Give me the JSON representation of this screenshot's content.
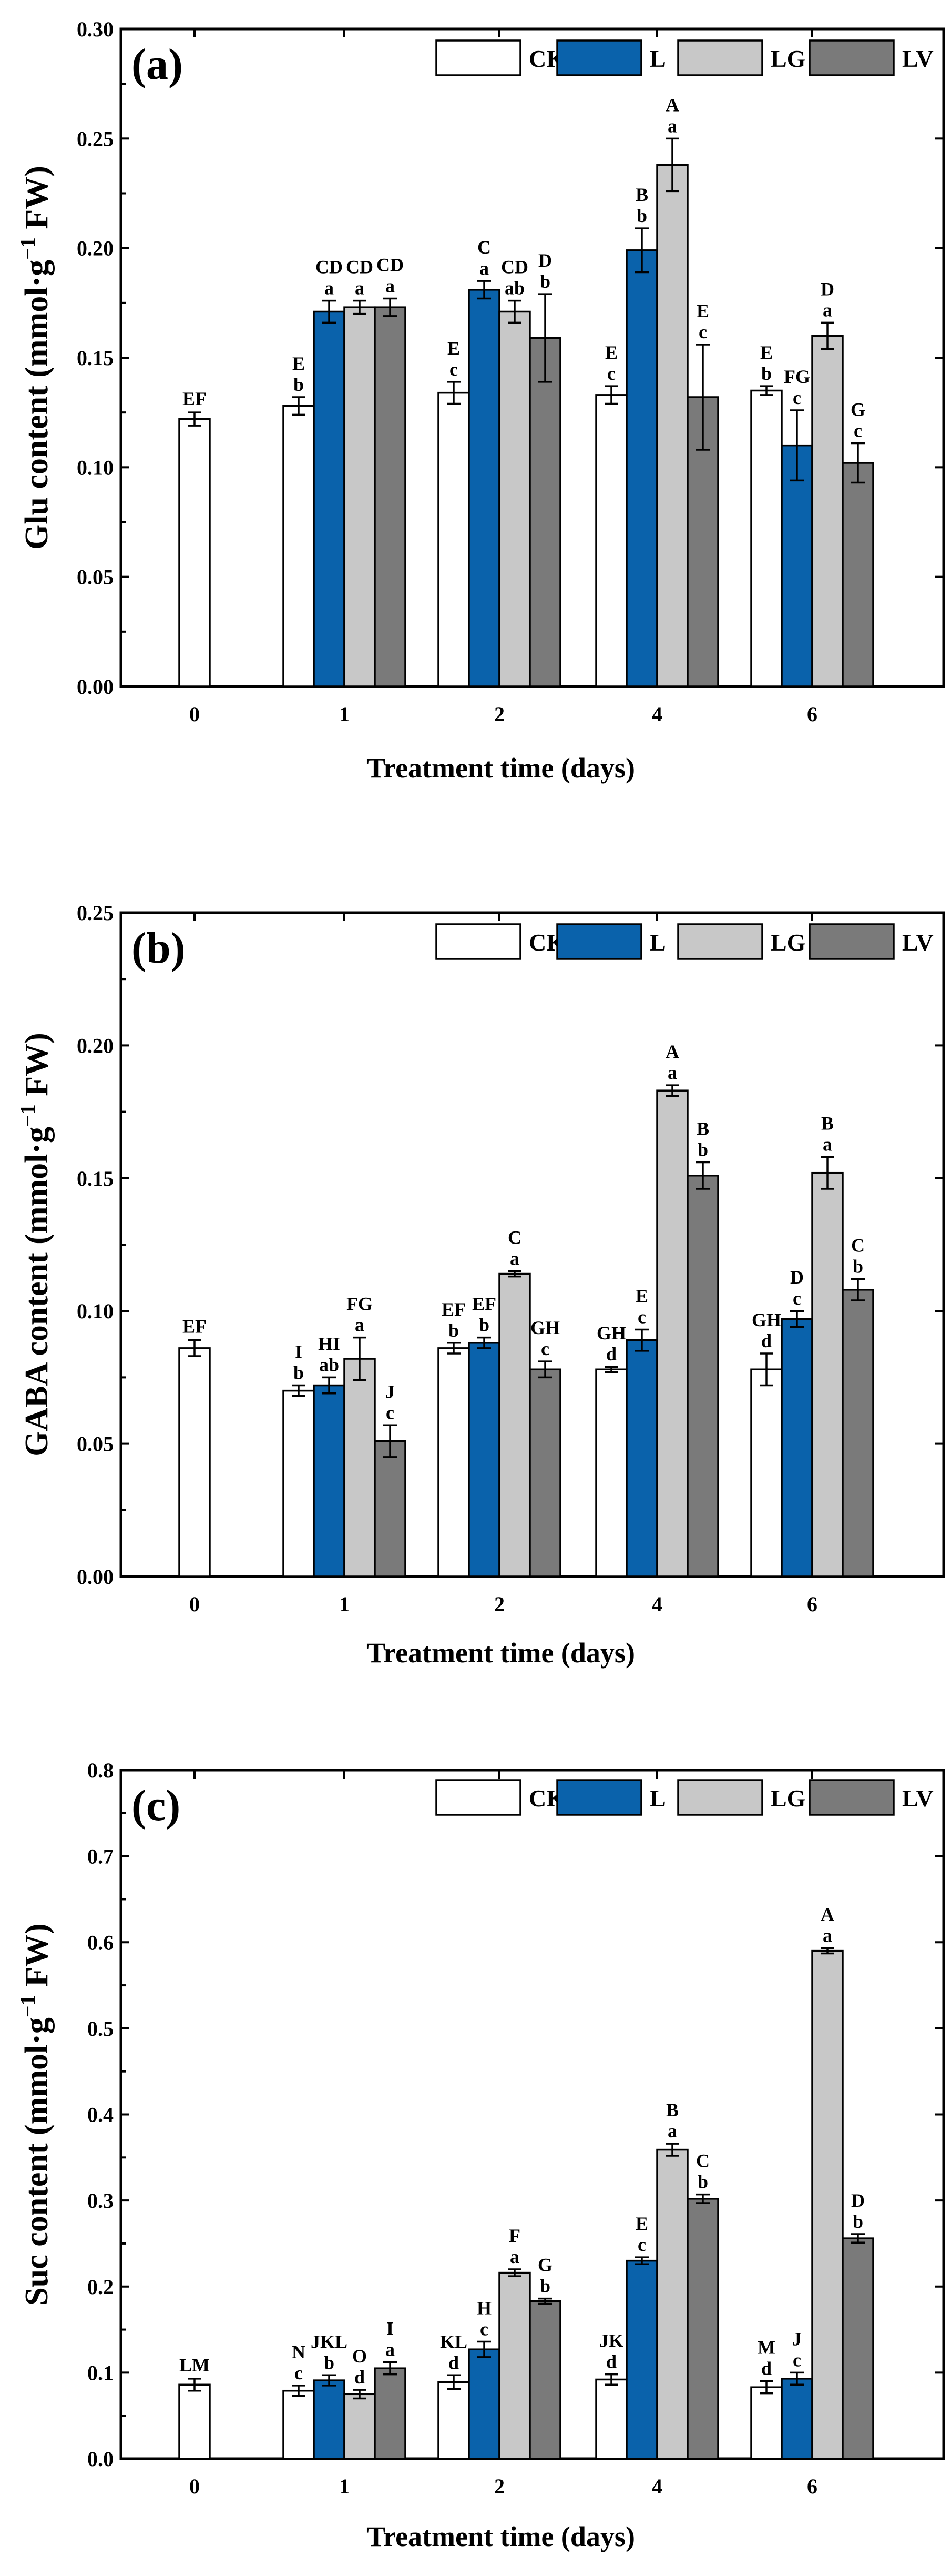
{
  "colors": {
    "CK": "#ffffff",
    "L": "#0a62ab",
    "LG": "#c8c8c8",
    "LV": "#7a7a7a"
  },
  "chart_data": [
    {
      "type": "bar",
      "panel": "(a)",
      "xlabel": "Treatment time (days)",
      "ylabel": {
        "prefix": "Glu content (mmol·g",
        "sup": "−1",
        "suffix": " FW)"
      },
      "ylim": [
        0,
        0.3
      ],
      "yticks": [
        "0.00",
        "0.05",
        "0.10",
        "0.15",
        "0.20",
        "0.25",
        "0.30"
      ],
      "categories": [
        "0",
        "1",
        "2",
        "4",
        "6"
      ],
      "legend": [
        "CK",
        "L",
        "LG",
        "LV"
      ],
      "series": [
        {
          "name": "CK",
          "values": [
            0.122,
            0.128,
            0.134,
            0.133,
            0.135
          ],
          "errors": [
            0.003,
            0.004,
            0.005,
            0.004,
            0.002
          ],
          "upper": [
            "EF",
            "E",
            "E",
            "E",
            "E"
          ],
          "lower": [
            "",
            "b",
            "c",
            "c",
            "b"
          ]
        },
        {
          "name": "L",
          "values": [
            null,
            0.171,
            0.181,
            0.199,
            0.11
          ],
          "errors": [
            null,
            0.005,
            0.004,
            0.01,
            0.016
          ],
          "upper": [
            "",
            "CD",
            "C",
            "B",
            "FG"
          ],
          "lower": [
            "",
            "a",
            "a",
            "b",
            "c"
          ]
        },
        {
          "name": "LG",
          "values": [
            null,
            0.173,
            0.171,
            0.238,
            0.16
          ],
          "errors": [
            null,
            0.003,
            0.005,
            0.012,
            0.006
          ],
          "upper": [
            "",
            "CD",
            "CD",
            "A",
            "D"
          ],
          "lower": [
            "",
            "a",
            "ab",
            "a",
            "a"
          ]
        },
        {
          "name": "LV",
          "values": [
            null,
            0.173,
            0.159,
            0.132,
            0.102
          ],
          "errors": [
            null,
            0.004,
            0.02,
            0.024,
            0.009
          ],
          "upper": [
            "",
            "CD",
            "D",
            "E",
            "G"
          ],
          "lower": [
            "",
            "a",
            "b",
            "c",
            "c"
          ]
        }
      ]
    },
    {
      "type": "bar",
      "panel": "(b)",
      "xlabel": "Treatment time (days)",
      "ylabel": {
        "prefix": "GABA content (mmol·g",
        "sup": "−1",
        "suffix": " FW)"
      },
      "ylim": [
        0,
        0.25
      ],
      "yticks": [
        "0.00",
        "0.05",
        "0.10",
        "0.15",
        "0.20",
        "0.25"
      ],
      "categories": [
        "0",
        "1",
        "2",
        "4",
        "6"
      ],
      "legend": [
        "CK",
        "L",
        "LG",
        "LV"
      ],
      "series": [
        {
          "name": "CK",
          "values": [
            0.086,
            0.07,
            0.086,
            0.078,
            0.078
          ],
          "errors": [
            0.003,
            0.002,
            0.002,
            0.001,
            0.006
          ],
          "upper": [
            "EF",
            "I",
            "EF",
            "GH",
            "GH"
          ],
          "lower": [
            "",
            "b",
            "b",
            "d",
            "d"
          ]
        },
        {
          "name": "L",
          "values": [
            null,
            0.072,
            0.088,
            0.089,
            0.097
          ],
          "errors": [
            null,
            0.003,
            0.002,
            0.004,
            0.003
          ],
          "upper": [
            "",
            "HI",
            "EF",
            "E",
            "D"
          ],
          "lower": [
            "",
            "ab",
            "b",
            "c",
            "c"
          ]
        },
        {
          "name": "LG",
          "values": [
            null,
            0.082,
            0.114,
            0.183,
            0.152
          ],
          "errors": [
            null,
            0.008,
            0.001,
            0.002,
            0.006
          ],
          "upper": [
            "",
            "FG",
            "C",
            "A",
            "B"
          ],
          "lower": [
            "",
            "a",
            "a",
            "a",
            "a"
          ]
        },
        {
          "name": "LV",
          "values": [
            null,
            0.051,
            0.078,
            0.151,
            0.108
          ],
          "errors": [
            null,
            0.006,
            0.003,
            0.005,
            0.004
          ],
          "upper": [
            "",
            "J",
            "GH",
            "B",
            "C"
          ],
          "lower": [
            "",
            "c",
            "c",
            "b",
            "b"
          ]
        }
      ]
    },
    {
      "type": "bar",
      "panel": "(c)",
      "xlabel": "Treatment time (days)",
      "ylabel": {
        "prefix": "Suc content (mmol·g",
        "sup": "−1",
        "suffix": " FW)"
      },
      "ylim": [
        0,
        0.8
      ],
      "yticks": [
        "0.0",
        "0.1",
        "0.2",
        "0.3",
        "0.4",
        "0.5",
        "0.6",
        "0.7",
        "0.8"
      ],
      "categories": [
        "0",
        "1",
        "2",
        "4",
        "6"
      ],
      "legend": [
        "CK",
        "L",
        "LG",
        "LV"
      ],
      "series": [
        {
          "name": "CK",
          "values": [
            0.086,
            0.079,
            0.089,
            0.092,
            0.083
          ],
          "errors": [
            0.007,
            0.006,
            0.008,
            0.006,
            0.007
          ],
          "upper": [
            "LM",
            "N",
            "KL",
            "JK",
            "M"
          ],
          "lower": [
            "",
            "c",
            "d",
            "d",
            "d"
          ]
        },
        {
          "name": "L",
          "values": [
            null,
            0.091,
            0.127,
            0.23,
            0.093
          ],
          "errors": [
            null,
            0.006,
            0.009,
            0.004,
            0.007
          ],
          "upper": [
            "",
            "JKL",
            "H",
            "E",
            "J"
          ],
          "lower": [
            "",
            "b",
            "c",
            "c",
            "c"
          ]
        },
        {
          "name": "LG",
          "values": [
            null,
            0.075,
            0.216,
            0.359,
            0.59
          ],
          "errors": [
            null,
            0.005,
            0.004,
            0.007,
            0.003
          ],
          "upper": [
            "",
            "O",
            "F",
            "B",
            "A"
          ],
          "lower": [
            "",
            "d",
            "a",
            "a",
            "a"
          ]
        },
        {
          "name": "LV",
          "values": [
            null,
            0.105,
            0.183,
            0.302,
            0.256
          ],
          "errors": [
            null,
            0.007,
            0.003,
            0.005,
            0.005
          ],
          "upper": [
            "",
            "I",
            "G",
            "C",
            "D"
          ],
          "lower": [
            "",
            "a",
            "b",
            "b",
            "b"
          ]
        }
      ]
    }
  ]
}
